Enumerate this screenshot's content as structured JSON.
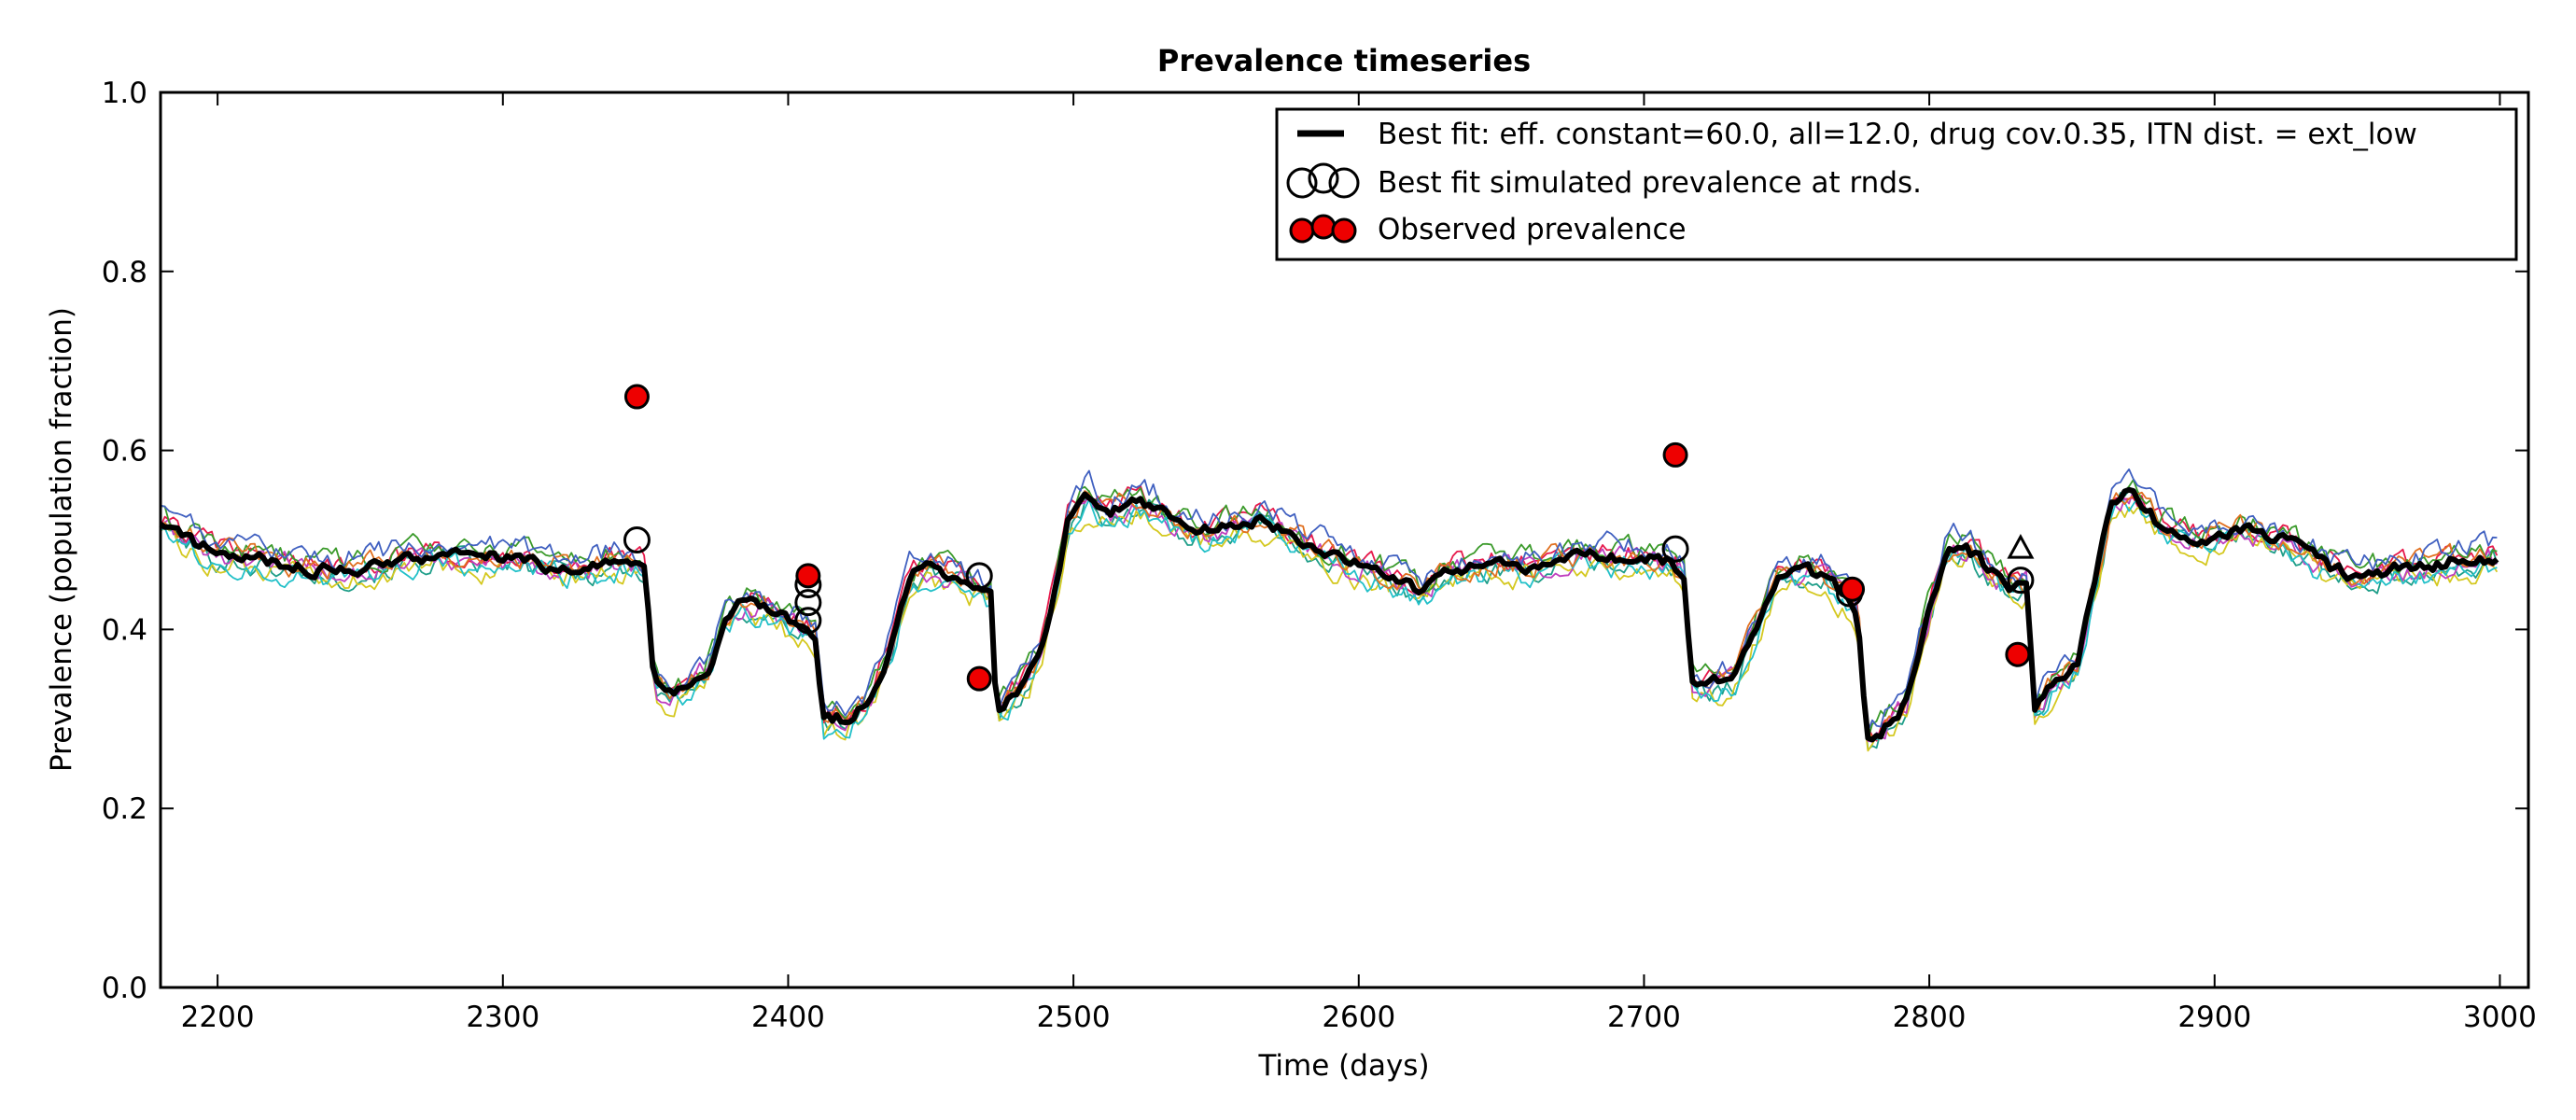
{
  "chart_data": {
    "type": "line",
    "title": "Prevalence timeseries",
    "xlabel": "Time (days)",
    "ylabel": "Prevalence (population fraction)",
    "xlim": [
      2180,
      3010
    ],
    "ylim": [
      0.0,
      1.0
    ],
    "xticks": [
      2200,
      2300,
      2400,
      2500,
      2600,
      2700,
      2800,
      2900,
      3000
    ],
    "yticks": [
      0.0,
      0.2,
      0.4,
      0.6,
      0.8,
      1.0
    ],
    "x_tick_labels": [
      "2200",
      "2300",
      "2400",
      "2500",
      "2600",
      "2700",
      "2800",
      "2900",
      "3000"
    ],
    "y_tick_labels": [
      "0.0",
      "0.2",
      "0.4",
      "0.6",
      "0.8",
      "1.0"
    ],
    "grid": false,
    "legend_position": "top-right",
    "legend": [
      {
        "label": "Best fit: eff. constant=60.0, all=12.0, drug cov.0.35, ITN dist. = ext_low",
        "kind": "line"
      },
      {
        "label": "Best fit simulated prevalence at rnds.",
        "kind": "open-circle"
      },
      {
        "label": "Observed prevalence",
        "kind": "red-circle"
      }
    ],
    "best_fit_profile": [
      [
        2180,
        0.52
      ],
      [
        2190,
        0.5
      ],
      [
        2200,
        0.485
      ],
      [
        2210,
        0.48
      ],
      [
        2220,
        0.475
      ],
      [
        2230,
        0.47
      ],
      [
        2240,
        0.465
      ],
      [
        2250,
        0.47
      ],
      [
        2260,
        0.475
      ],
      [
        2270,
        0.48
      ],
      [
        2280,
        0.485
      ],
      [
        2290,
        0.48
      ],
      [
        2300,
        0.48
      ],
      [
        2310,
        0.475
      ],
      [
        2320,
        0.47
      ],
      [
        2330,
        0.47
      ],
      [
        2340,
        0.475
      ],
      [
        2349,
        0.47
      ],
      [
        2350,
        0.46
      ],
      [
        2353,
        0.34
      ],
      [
        2358,
        0.33
      ],
      [
        2365,
        0.335
      ],
      [
        2372,
        0.36
      ],
      [
        2378,
        0.41
      ],
      [
        2384,
        0.43
      ],
      [
        2392,
        0.425
      ],
      [
        2400,
        0.41
      ],
      [
        2406,
        0.4
      ],
      [
        2410,
        0.39
      ],
      [
        2412,
        0.3
      ],
      [
        2420,
        0.3
      ],
      [
        2428,
        0.32
      ],
      [
        2436,
        0.38
      ],
      [
        2443,
        0.46
      ],
      [
        2450,
        0.47
      ],
      [
        2458,
        0.46
      ],
      [
        2466,
        0.45
      ],
      [
        2471,
        0.44
      ],
      [
        2473,
        0.31
      ],
      [
        2480,
        0.33
      ],
      [
        2488,
        0.37
      ],
      [
        2494,
        0.45
      ],
      [
        2498,
        0.52
      ],
      [
        2505,
        0.55
      ],
      [
        2512,
        0.53
      ],
      [
        2520,
        0.54
      ],
      [
        2528,
        0.54
      ],
      [
        2536,
        0.52
      ],
      [
        2545,
        0.51
      ],
      [
        2555,
        0.515
      ],
      [
        2565,
        0.525
      ],
      [
        2575,
        0.51
      ],
      [
        2585,
        0.49
      ],
      [
        2595,
        0.475
      ],
      [
        2605,
        0.465
      ],
      [
        2615,
        0.455
      ],
      [
        2622,
        0.44
      ],
      [
        2630,
        0.465
      ],
      [
        2640,
        0.47
      ],
      [
        2650,
        0.475
      ],
      [
        2660,
        0.47
      ],
      [
        2670,
        0.48
      ],
      [
        2680,
        0.485
      ],
      [
        2690,
        0.48
      ],
      [
        2700,
        0.48
      ],
      [
        2710,
        0.475
      ],
      [
        2714,
        0.46
      ],
      [
        2717,
        0.34
      ],
      [
        2724,
        0.34
      ],
      [
        2732,
        0.35
      ],
      [
        2740,
        0.41
      ],
      [
        2747,
        0.46
      ],
      [
        2755,
        0.465
      ],
      [
        2763,
        0.46
      ],
      [
        2770,
        0.44
      ],
      [
        2775,
        0.42
      ],
      [
        2778,
        0.28
      ],
      [
        2784,
        0.29
      ],
      [
        2792,
        0.32
      ],
      [
        2800,
        0.42
      ],
      [
        2806,
        0.49
      ],
      [
        2812,
        0.495
      ],
      [
        2820,
        0.47
      ],
      [
        2828,
        0.45
      ],
      [
        2834,
        0.45
      ],
      [
        2837,
        0.31
      ],
      [
        2844,
        0.34
      ],
      [
        2852,
        0.36
      ],
      [
        2858,
        0.45
      ],
      [
        2864,
        0.54
      ],
      [
        2872,
        0.555
      ],
      [
        2880,
        0.52
      ],
      [
        2890,
        0.505
      ],
      [
        2900,
        0.505
      ],
      [
        2910,
        0.51
      ],
      [
        2920,
        0.505
      ],
      [
        2930,
        0.49
      ],
      [
        2940,
        0.47
      ],
      [
        2950,
        0.46
      ],
      [
        2960,
        0.465
      ],
      [
        2970,
        0.47
      ],
      [
        2980,
        0.475
      ],
      [
        2990,
        0.48
      ],
      [
        3000,
        0.48
      ]
    ],
    "simulation_color_map": [
      "#1f9e89",
      "#e6194b",
      "#d4c81f",
      "#bf40bf",
      "#3a9a2a",
      "#22c0c8",
      "#e07020",
      "#4060c0",
      "#000000"
    ],
    "simulated_rounds": [
      {
        "x": 2347,
        "y": 0.5,
        "marker": "circle"
      },
      {
        "x": 2407,
        "y": 0.45,
        "marker": "circle"
      },
      {
        "x": 2407,
        "y": 0.43,
        "marker": "circle"
      },
      {
        "x": 2407,
        "y": 0.41,
        "marker": "circle"
      },
      {
        "x": 2467,
        "y": 0.46,
        "marker": "circle"
      },
      {
        "x": 2711,
        "y": 0.49,
        "marker": "circle"
      },
      {
        "x": 2772,
        "y": 0.44,
        "marker": "circle"
      },
      {
        "x": 2832,
        "y": 0.49,
        "marker": "triangle"
      },
      {
        "x": 2832,
        "y": 0.455,
        "marker": "circle"
      }
    ],
    "observed": [
      {
        "x": 2347,
        "y": 0.66
      },
      {
        "x": 2407,
        "y": 0.46
      },
      {
        "x": 2467,
        "y": 0.345
      },
      {
        "x": 2711,
        "y": 0.595
      },
      {
        "x": 2773,
        "y": 0.445
      },
      {
        "x": 2831,
        "y": 0.372
      }
    ]
  }
}
